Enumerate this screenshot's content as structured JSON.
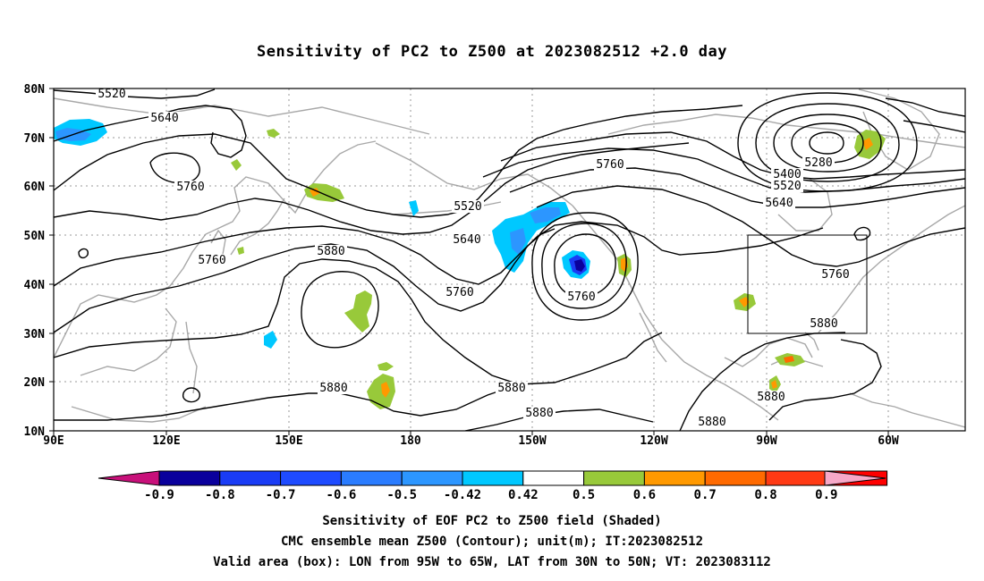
{
  "title": "Sensitivity of PC2 to Z500 at 2023082512 +2.0 day",
  "lat_labels": [
    "80N",
    "70N",
    "60N",
    "50N",
    "40N",
    "30N",
    "20N",
    "10N"
  ],
  "lon_labels": [
    "90E",
    "120E",
    "150E",
    "180",
    "150W",
    "120W",
    "90W",
    "60W"
  ],
  "contour_labels": [
    "5520",
    "5640",
    "5760",
    "5760",
    "5880",
    "5520",
    "5640",
    "5760",
    "5760",
    "5760",
    "5280",
    "5400",
    "5520",
    "5640",
    "5760",
    "5880",
    "5880",
    "5880",
    "5880",
    "5880",
    "5880"
  ],
  "colorbar": {
    "labels": [
      "-0.9",
      "-0.8",
      "-0.7",
      "-0.6",
      "-0.5",
      "-0.42",
      "0.42",
      "0.5",
      "0.6",
      "0.7",
      "0.8",
      "0.9"
    ],
    "colors": [
      "#0a009c",
      "#1a3cf5",
      "#1e4bff",
      "#2a7cff",
      "#2c96ff",
      "#00c8ff",
      "#ffffff",
      "#98c93a",
      "#ff9900",
      "#ff6a00",
      "#ff3a14",
      "#ff0000"
    ],
    "low_end_color": "#c8107a",
    "high_end_color": "#f7a8c8"
  },
  "validity_box": {
    "lon_west": "95W",
    "lon_east": "65W",
    "lat_south": "30N",
    "lat_north": "50N"
  },
  "captions": [
    "Sensitivity of EOF PC2 to Z500 field (Shaded)",
    "CMC ensemble mean Z500 (Contour); unit(m); IT:2023082512",
    "Valid area (box): LON from 95W to 65W, LAT from 30N to 50N; VT: 2023083112"
  ]
}
